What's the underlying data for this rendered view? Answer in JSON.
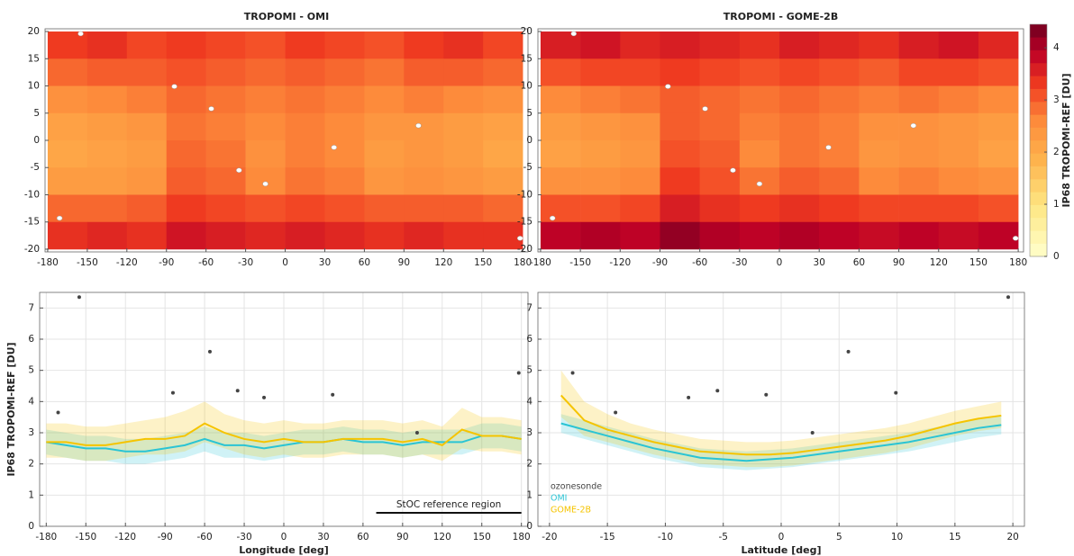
{
  "chart_data": [
    {
      "type": "heatmap",
      "title": "TROPOMI - OMI",
      "x_edges": [
        -180,
        -150,
        -120,
        -90,
        -60,
        -30,
        0,
        30,
        60,
        90,
        120,
        150,
        180
      ],
      "y_edges": [
        20,
        15,
        10,
        5,
        0,
        -5,
        -10,
        -15,
        -20
      ],
      "z": [
        [
          3.3,
          3.4,
          3.2,
          3.3,
          3.2,
          3.1,
          3.3,
          3.2,
          3.1,
          3.3,
          3.4,
          3.2
        ],
        [
          2.9,
          3.0,
          3.0,
          3.1,
          3.0,
          2.9,
          3.0,
          2.9,
          2.8,
          3.0,
          3.0,
          2.9
        ],
        [
          2.5,
          2.6,
          2.7,
          2.9,
          2.8,
          2.7,
          2.8,
          2.7,
          2.6,
          2.7,
          2.6,
          2.5
        ],
        [
          2.2,
          2.3,
          2.4,
          2.8,
          2.7,
          2.6,
          2.7,
          2.6,
          2.4,
          2.4,
          2.3,
          2.2
        ],
        [
          2.1,
          2.2,
          2.3,
          2.9,
          2.8,
          2.5,
          2.7,
          2.6,
          2.3,
          2.4,
          2.3,
          2.1
        ],
        [
          2.3,
          2.3,
          2.4,
          3.0,
          2.9,
          2.6,
          2.8,
          2.7,
          2.4,
          2.5,
          2.4,
          2.3
        ],
        [
          2.9,
          2.9,
          3.0,
          3.3,
          3.2,
          3.1,
          3.2,
          3.1,
          3.0,
          3.0,
          3.0,
          2.9
        ],
        [
          3.4,
          3.5,
          3.4,
          3.7,
          3.6,
          3.5,
          3.6,
          3.5,
          3.4,
          3.5,
          3.4,
          3.4
        ]
      ],
      "stations": {
        "lon": [
          -171,
          -155,
          -84,
          -56,
          -35,
          -15,
          37,
          101,
          178
        ],
        "lat": [
          -14.3,
          19.6,
          9.9,
          5.8,
          -5.5,
          -8,
          -1.3,
          2.7,
          -18
        ]
      },
      "clim": [
        0,
        4.45
      ],
      "xlim": [
        -182,
        184
      ],
      "ylim": [
        -20.5,
        20.5
      ],
      "xticks": [
        -180,
        -150,
        -120,
        -90,
        -60,
        -30,
        0,
        30,
        60,
        90,
        120,
        150,
        180
      ],
      "yticks": [
        -20,
        -15,
        -10,
        -5,
        0,
        5,
        10,
        15,
        20
      ]
    },
    {
      "type": "heatmap",
      "title": "TROPOMI - GOME-2B",
      "x_edges": [
        -180,
        -150,
        -120,
        -90,
        -60,
        -30,
        0,
        30,
        60,
        90,
        120,
        150,
        180
      ],
      "y_edges": [
        20,
        15,
        10,
        5,
        0,
        -5,
        -10,
        -15,
        -20
      ],
      "z": [
        [
          3.6,
          3.7,
          3.5,
          3.6,
          3.5,
          3.4,
          3.6,
          3.5,
          3.4,
          3.6,
          3.7,
          3.5
        ],
        [
          3.1,
          3.2,
          3.2,
          3.3,
          3.2,
          3.1,
          3.2,
          3.1,
          3.0,
          3.2,
          3.2,
          3.1
        ],
        [
          2.6,
          2.7,
          2.8,
          3.0,
          2.9,
          2.8,
          2.9,
          2.8,
          2.7,
          2.8,
          2.7,
          2.6
        ],
        [
          2.3,
          2.4,
          2.5,
          3.0,
          2.9,
          2.7,
          2.8,
          2.7,
          2.5,
          2.5,
          2.4,
          2.3
        ],
        [
          2.2,
          2.3,
          2.4,
          3.1,
          3.0,
          2.6,
          2.8,
          2.7,
          2.4,
          2.5,
          2.4,
          2.2
        ],
        [
          2.5,
          2.5,
          2.6,
          3.3,
          3.1,
          2.8,
          3.0,
          2.9,
          2.6,
          2.7,
          2.6,
          2.5
        ],
        [
          3.1,
          3.1,
          3.2,
          3.6,
          3.4,
          3.3,
          3.4,
          3.3,
          3.2,
          3.2,
          3.2,
          3.1
        ],
        [
          3.9,
          4.0,
          3.9,
          4.2,
          4.0,
          3.9,
          4.0,
          3.9,
          3.8,
          3.9,
          3.8,
          3.9
        ]
      ],
      "stations": {
        "lon": [
          -171,
          -155,
          -84,
          -56,
          -35,
          -15,
          37,
          101,
          178
        ],
        "lat": [
          -14.3,
          19.6,
          9.9,
          5.8,
          -5.5,
          -8,
          -1.3,
          2.7,
          -18
        ]
      },
      "clim": [
        0,
        4.45
      ],
      "colorbar": {
        "label": "IP68 TROPOMI-REF [DU]",
        "ticks": [
          0,
          1,
          2,
          3,
          4
        ]
      },
      "xlim": [
        -182,
        184
      ],
      "ylim": [
        -20.5,
        20.5
      ],
      "xticks": [
        -180,
        -150,
        -120,
        -90,
        -60,
        -30,
        0,
        30,
        60,
        90,
        120,
        150,
        180
      ],
      "yticks": [
        -20,
        -15,
        -10,
        -5,
        0,
        5,
        10,
        15,
        20
      ]
    },
    {
      "type": "line",
      "xlabel": "Longitude [deg]",
      "ylabel": "IP68 TROPOMI-REF [DU]",
      "x": [
        -180,
        -165,
        -150,
        -135,
        -120,
        -105,
        -90,
        -75,
        -60,
        -45,
        -30,
        -15,
        0,
        15,
        30,
        45,
        60,
        75,
        90,
        105,
        120,
        135,
        150,
        165,
        180
      ],
      "series": [
        {
          "color": "#2ac4d4",
          "values": [
            2.7,
            2.6,
            2.5,
            2.5,
            2.4,
            2.4,
            2.5,
            2.6,
            2.8,
            2.6,
            2.6,
            2.5,
            2.6,
            2.7,
            2.7,
            2.8,
            2.7,
            2.7,
            2.6,
            2.7,
            2.7,
            2.7,
            2.9,
            2.9,
            2.8
          ],
          "lower": [
            2.3,
            2.2,
            2.1,
            2.1,
            2.0,
            2.0,
            2.1,
            2.2,
            2.4,
            2.2,
            2.2,
            2.1,
            2.2,
            2.3,
            2.3,
            2.4,
            2.3,
            2.3,
            2.2,
            2.3,
            2.3,
            2.3,
            2.5,
            2.5,
            2.4
          ],
          "upper": [
            3.1,
            3.0,
            2.9,
            2.9,
            2.8,
            2.8,
            2.9,
            3.0,
            3.2,
            3.0,
            3.0,
            2.9,
            3.0,
            3.1,
            3.1,
            3.2,
            3.1,
            3.1,
            3.0,
            3.1,
            3.1,
            3.1,
            3.3,
            3.3,
            3.2
          ]
        },
        {
          "color": "#f5c400",
          "values": [
            2.7,
            2.7,
            2.6,
            2.6,
            2.7,
            2.8,
            2.8,
            2.9,
            3.3,
            3.0,
            2.8,
            2.7,
            2.8,
            2.7,
            2.7,
            2.8,
            2.8,
            2.8,
            2.7,
            2.8,
            2.6,
            3.1,
            2.9,
            2.9,
            2.8
          ],
          "lower": [
            2.2,
            2.2,
            2.1,
            2.1,
            2.2,
            2.3,
            2.3,
            2.4,
            2.7,
            2.5,
            2.3,
            2.2,
            2.3,
            2.2,
            2.2,
            2.3,
            2.3,
            2.3,
            2.2,
            2.3,
            2.1,
            2.5,
            2.4,
            2.4,
            2.3
          ],
          "upper": [
            3.3,
            3.3,
            3.2,
            3.2,
            3.3,
            3.4,
            3.5,
            3.7,
            4.0,
            3.6,
            3.4,
            3.3,
            3.4,
            3.3,
            3.3,
            3.4,
            3.4,
            3.4,
            3.3,
            3.4,
            3.2,
            3.8,
            3.5,
            3.5,
            3.4
          ]
        },
        {
          "color": "#444444",
          "mode": "markers",
          "x": [
            -171,
            -155,
            -84,
            -56,
            -35,
            -15,
            37,
            101,
            178
          ],
          "values": [
            3.65,
            7.35,
            4.28,
            5.6,
            4.35,
            4.13,
            4.22,
            3.0,
            4.92
          ]
        }
      ],
      "reference_region": {
        "label": "StOC reference region",
        "lon": [
          70,
          180
        ]
      },
      "grid": true,
      "xlim": [
        -185,
        185
      ],
      "ylim": [
        0,
        7.5
      ],
      "xticks": [
        -180,
        -150,
        -120,
        -90,
        -60,
        -30,
        0,
        30,
        60,
        90,
        120,
        150,
        180
      ],
      "yticks": [
        0,
        1,
        2,
        3,
        4,
        5,
        6,
        7
      ]
    },
    {
      "type": "line",
      "xlabel": "Latitude [deg]",
      "x": [
        -19,
        -17,
        -15,
        -13,
        -11,
        -9,
        -7,
        -5,
        -3,
        -1,
        1,
        3,
        5,
        7,
        9,
        11,
        13,
        15,
        17,
        19
      ],
      "series": [
        {
          "name": "ozonesonde",
          "color": "#444444",
          "mode": "markers",
          "x": [
            -18,
            -14.3,
            -8,
            -5.5,
            -1.3,
            2.7,
            5.8,
            9.9,
            19.6
          ],
          "values": [
            4.92,
            3.65,
            4.13,
            4.35,
            4.22,
            3.0,
            5.6,
            4.28,
            7.35
          ]
        },
        {
          "name": "OMI",
          "color": "#2ac4d4",
          "values": [
            3.3,
            3.1,
            2.9,
            2.7,
            2.5,
            2.35,
            2.2,
            2.15,
            2.1,
            2.15,
            2.2,
            2.3,
            2.4,
            2.5,
            2.6,
            2.7,
            2.85,
            3.0,
            3.15,
            3.25
          ],
          "lower": [
            3.0,
            2.8,
            2.6,
            2.4,
            2.2,
            2.05,
            1.9,
            1.85,
            1.8,
            1.85,
            1.9,
            2.0,
            2.1,
            2.2,
            2.3,
            2.4,
            2.55,
            2.7,
            2.85,
            2.95
          ],
          "upper": [
            3.6,
            3.4,
            3.2,
            3.0,
            2.8,
            2.65,
            2.5,
            2.45,
            2.4,
            2.45,
            2.5,
            2.6,
            2.7,
            2.8,
            2.9,
            3.0,
            3.15,
            3.3,
            3.45,
            3.55
          ]
        },
        {
          "name": "GOME-2B",
          "color": "#f5c400",
          "values": [
            4.2,
            3.4,
            3.1,
            2.9,
            2.7,
            2.55,
            2.4,
            2.35,
            2.3,
            2.3,
            2.35,
            2.45,
            2.55,
            2.65,
            2.75,
            2.9,
            3.1,
            3.3,
            3.45,
            3.55
          ],
          "lower": [
            3.5,
            2.9,
            2.7,
            2.5,
            2.3,
            2.15,
            2.0,
            1.95,
            1.9,
            1.9,
            1.95,
            2.05,
            2.15,
            2.25,
            2.35,
            2.5,
            2.7,
            2.9,
            3.05,
            3.15
          ],
          "upper": [
            5.0,
            4.0,
            3.6,
            3.3,
            3.1,
            2.95,
            2.8,
            2.75,
            2.7,
            2.7,
            2.75,
            2.85,
            2.95,
            3.05,
            3.15,
            3.3,
            3.5,
            3.7,
            3.85,
            4.0
          ]
        }
      ],
      "legend": "lower left",
      "grid": true,
      "xlim": [
        -21,
        21
      ],
      "ylim": [
        0,
        7.5
      ],
      "xticks": [
        -20,
        -15,
        -10,
        -5,
        0,
        5,
        10,
        15,
        20
      ],
      "yticks": [
        0,
        1,
        2,
        3,
        4,
        5,
        6,
        7
      ]
    }
  ]
}
